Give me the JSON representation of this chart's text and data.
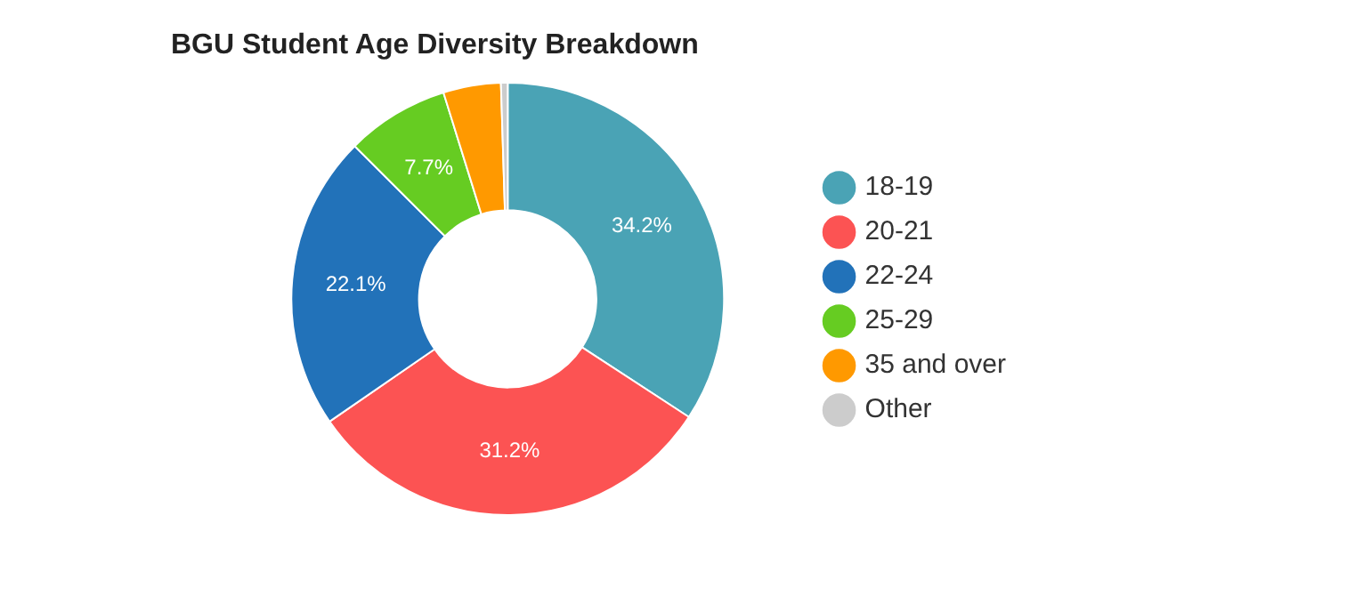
{
  "chart_data": {
    "type": "donut",
    "title": "BGU Student Age Diversity Breakdown",
    "categories": [
      "18-19",
      "20-21",
      "22-24",
      "25-29",
      "35 and over",
      "Other"
    ],
    "values": [
      34.2,
      31.2,
      22.1,
      7.7,
      4.3,
      0.5
    ],
    "colors": [
      "#4aa3b5",
      "#fc5353",
      "#2272b9",
      "#66cc22",
      "#ff9900",
      "#cccccc"
    ],
    "value_labels": [
      "34.2%",
      "31.2%",
      "22.1%",
      "7.7%",
      null,
      null
    ],
    "legend": "right"
  }
}
